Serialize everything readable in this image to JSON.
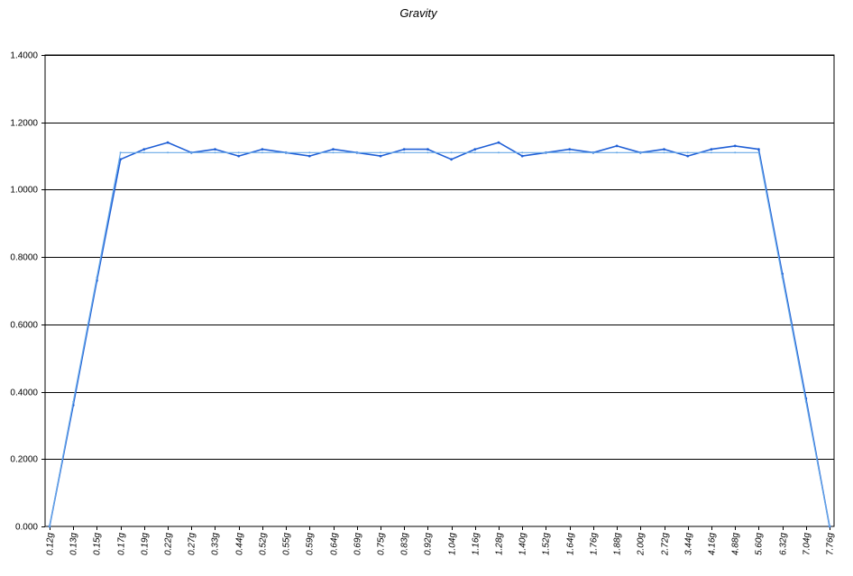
{
  "chart_data": {
    "type": "line",
    "title": "Gravity",
    "xlabel": "",
    "ylabel": "",
    "ylim": [
      0,
      1.4
    ],
    "yticks": [
      "0.000",
      "0.2000",
      "0.4000",
      "0.6000",
      "0.8000",
      "1.0000",
      "1.2000",
      "1.4000"
    ],
    "ytick_values": [
      0,
      0.2,
      0.4,
      0.6,
      0.8,
      1.0,
      1.2,
      1.4
    ],
    "grid": "horizontal",
    "categories": [
      "0.12g",
      "0.13g",
      "0.15g",
      "0.17g",
      "0.19g",
      "0.22g",
      "0.27g",
      "0.33g",
      "0.44g",
      "0.52g",
      "0.55g",
      "0.59g",
      "0.64g",
      "0.69g",
      "0.75g",
      "0.83g",
      "0.92g",
      "1.04g",
      "1.16g",
      "1.28g",
      "1.40g",
      "1.52g",
      "1.64g",
      "1.76g",
      "1.88g",
      "2.00g",
      "2.72g",
      "3.44g",
      "4.16g",
      "4.88g",
      "5.60g",
      "6.32g",
      "7.04g",
      "7.76g"
    ],
    "series": [
      {
        "color": "#1f5fd6",
        "values": [
          0.0,
          0.36,
          0.73,
          1.09,
          1.12,
          1.14,
          1.11,
          1.12,
          1.1,
          1.12,
          1.11,
          1.1,
          1.12,
          1.11,
          1.1,
          1.12,
          1.12,
          1.09,
          1.12,
          1.14,
          1.1,
          1.11,
          1.12,
          1.11,
          1.13,
          1.11,
          1.12,
          1.1,
          1.12,
          1.13,
          1.12,
          0.75,
          0.38,
          0.0
        ]
      },
      {
        "color": "#6aaae8",
        "values": [
          0.0,
          0.37,
          0.74,
          1.11,
          1.11,
          1.11,
          1.11,
          1.11,
          1.11,
          1.11,
          1.11,
          1.11,
          1.11,
          1.11,
          1.11,
          1.11,
          1.11,
          1.11,
          1.11,
          1.11,
          1.11,
          1.11,
          1.11,
          1.11,
          1.11,
          1.11,
          1.11,
          1.11,
          1.11,
          1.11,
          1.11,
          0.74,
          0.37,
          0.0
        ]
      }
    ]
  }
}
